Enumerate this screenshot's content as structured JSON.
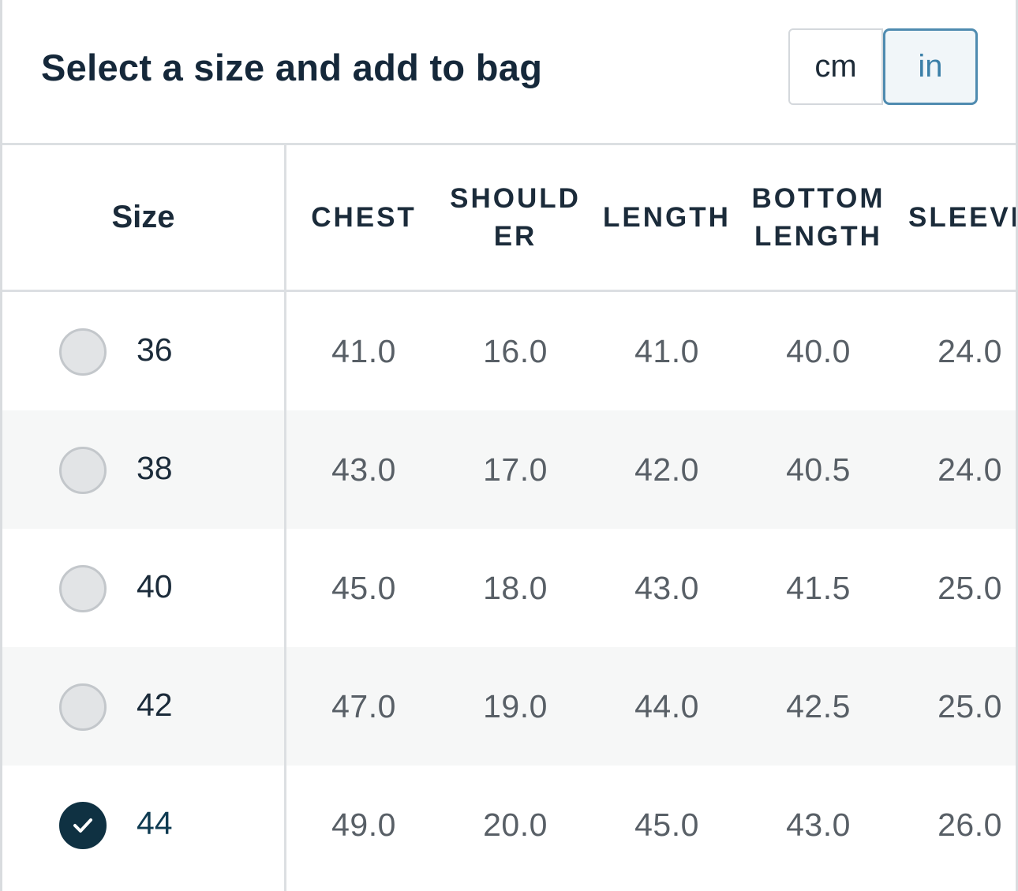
{
  "header": {
    "title": "Select a size and add to bag"
  },
  "units": {
    "cm": "cm",
    "in": "in",
    "selected": "in"
  },
  "table": {
    "columns": {
      "size": "Size",
      "chest": "CHEST",
      "shoulder": "SHOULDER",
      "length": "LENGTH",
      "bottom_length": "BOTTOM LENGTH",
      "sleeve_length": "SLEEVE LENGTH"
    },
    "rows": [
      {
        "size": "36",
        "chest": "41.0",
        "shoulder": "16.0",
        "length": "41.0",
        "bottom_length": "40.0",
        "sleeve_length": "24.0",
        "selected": false
      },
      {
        "size": "38",
        "chest": "43.0",
        "shoulder": "17.0",
        "length": "42.0",
        "bottom_length": "40.5",
        "sleeve_length": "24.0",
        "selected": false
      },
      {
        "size": "40",
        "chest": "45.0",
        "shoulder": "18.0",
        "length": "43.0",
        "bottom_length": "41.5",
        "sleeve_length": "25.0",
        "selected": false
      },
      {
        "size": "42",
        "chest": "47.0",
        "shoulder": "19.0",
        "length": "44.0",
        "bottom_length": "42.5",
        "sleeve_length": "25.0",
        "selected": false
      },
      {
        "size": "44",
        "chest": "49.0",
        "shoulder": "20.0",
        "length": "45.0",
        "bottom_length": "43.0",
        "sleeve_length": "26.0",
        "selected": true
      }
    ]
  },
  "colors": {
    "accent": "#3b7fa8",
    "selected_radio": "#0f3142",
    "divider": "#dcdfe2",
    "alt_row": "#f6f7f7"
  }
}
